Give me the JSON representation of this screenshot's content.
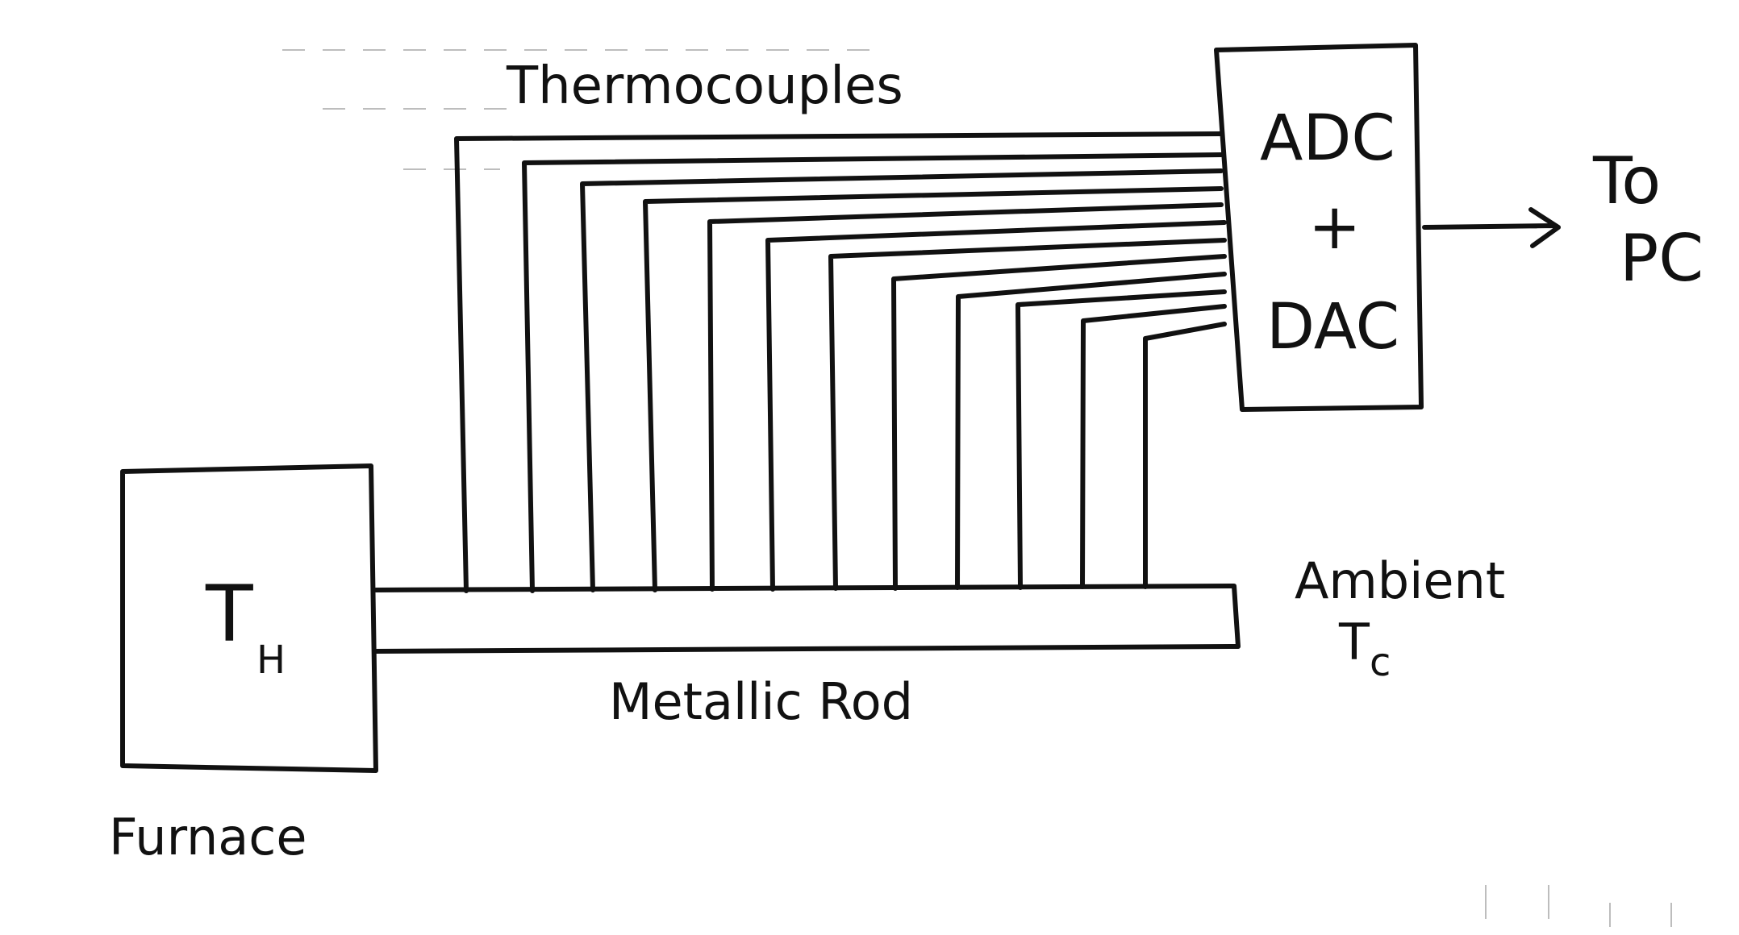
{
  "labels": {
    "thermocouples": "Thermocouples",
    "adc": "ADC",
    "plus": "+",
    "dac": "DAC",
    "to": "To",
    "pc": "PC",
    "ambient": "Ambient",
    "tc_main": "T",
    "tc_sub": "c",
    "th_main": "T",
    "th_sub": "H",
    "metallic_rod": "Metallic  Rod",
    "furnace": "Furnace"
  },
  "thermocouple_count": 12,
  "ink_color": "#111111"
}
